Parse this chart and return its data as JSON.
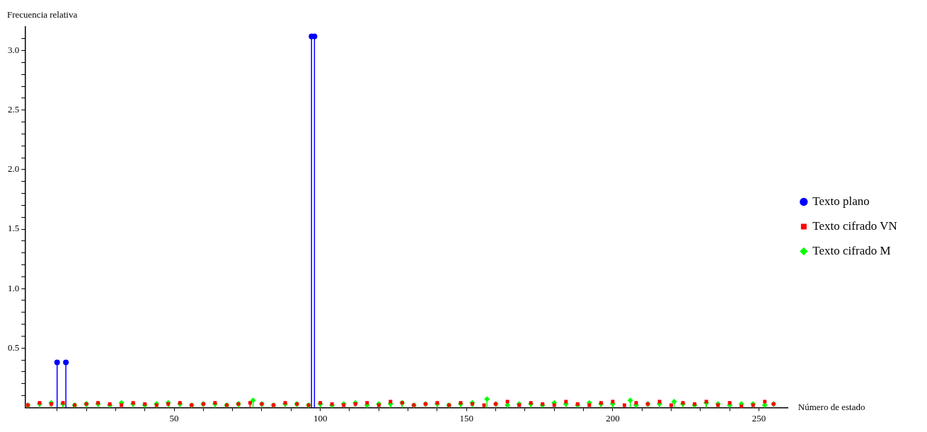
{
  "chart_data": {
    "type": "lollipop",
    "xlabel": "Número de estado",
    "ylabel": "Frecuencia relativa",
    "legend": "right",
    "grid": false,
    "xlim": [
      -1,
      260
    ],
    "ylim": [
      0,
      3.2
    ],
    "xticks": [
      {
        "value": 10,
        "label": null
      },
      {
        "value": 20,
        "label": null
      },
      {
        "value": 30,
        "label": null
      },
      {
        "value": 40,
        "label": null
      },
      50,
      {
        "value": 60,
        "label": null
      },
      {
        "value": 70,
        "label": null
      },
      {
        "value": 80,
        "label": null
      },
      {
        "value": 90,
        "label": null
      },
      100,
      {
        "value": 110,
        "label": null
      },
      {
        "value": 120,
        "label": null
      },
      {
        "value": 130,
        "label": null
      },
      {
        "value": 140,
        "label": null
      },
      150,
      {
        "value": 160,
        "label": null
      },
      {
        "value": 170,
        "label": null
      },
      {
        "value": 180,
        "label": null
      },
      {
        "value": 190,
        "label": null
      },
      200,
      {
        "value": 210,
        "label": null
      },
      {
        "value": 220,
        "label": null
      },
      {
        "value": 230,
        "label": null
      },
      {
        "value": 240,
        "label": null
      },
      250
    ],
    "yticks": [
      {
        "value": 0.1,
        "label": null
      },
      {
        "value": 0.2,
        "label": null
      },
      {
        "value": 0.3,
        "label": null
      },
      {
        "value": 0.4,
        "label": null
      },
      {
        "value": 0.5,
        "label": "0.5"
      },
      {
        "value": 0.6,
        "label": null
      },
      {
        "value": 0.7,
        "label": null
      },
      {
        "value": 0.8,
        "label": null
      },
      {
        "value": 0.9,
        "label": null
      },
      {
        "value": 1.0,
        "label": "1.0"
      },
      {
        "value": 1.1,
        "label": null
      },
      {
        "value": 1.2,
        "label": null
      },
      {
        "value": 1.3,
        "label": null
      },
      {
        "value": 1.4,
        "label": null
      },
      {
        "value": 1.5,
        "label": "1.5"
      },
      {
        "value": 1.6,
        "label": null
      },
      {
        "value": 1.7,
        "label": null
      },
      {
        "value": 1.8,
        "label": null
      },
      {
        "value": 1.9,
        "label": null
      },
      {
        "value": 2.0,
        "label": "2.0"
      },
      {
        "value": 2.1,
        "label": null
      },
      {
        "value": 2.2,
        "label": null
      },
      {
        "value": 2.3,
        "label": null
      },
      {
        "value": 2.4,
        "label": null
      },
      {
        "value": 2.5,
        "label": "2.5"
      },
      {
        "value": 2.6,
        "label": null
      },
      {
        "value": 2.7,
        "label": null
      },
      {
        "value": 2.8,
        "label": null
      },
      {
        "value": 2.9,
        "label": null
      },
      {
        "value": 3.0,
        "label": "3.0"
      },
      {
        "value": 3.1,
        "label": null
      }
    ],
    "series": [
      {
        "name": "Texto plano",
        "color": "#0000ff",
        "marker": "circle",
        "x": [
          10,
          13,
          97,
          98
        ],
        "values": [
          0.38,
          0.38,
          3.12,
          3.12
        ]
      },
      {
        "name": "Texto cifrado VN",
        "color": "#ff0000",
        "marker": "square",
        "x": [
          0,
          4,
          8,
          12,
          16,
          20,
          24,
          28,
          32,
          36,
          40,
          44,
          48,
          52,
          56,
          60,
          64,
          68,
          72,
          76,
          80,
          84,
          88,
          92,
          96,
          100,
          104,
          108,
          112,
          116,
          120,
          124,
          128,
          132,
          136,
          140,
          144,
          148,
          152,
          156,
          160,
          164,
          168,
          172,
          176,
          180,
          184,
          188,
          192,
          196,
          200,
          204,
          208,
          212,
          216,
          220,
          224,
          228,
          232,
          236,
          240,
          244,
          248,
          252,
          255
        ],
        "values": [
          0.02,
          0.04,
          0.03,
          0.04,
          0.02,
          0.03,
          0.04,
          0.03,
          0.02,
          0.04,
          0.03,
          0.02,
          0.03,
          0.04,
          0.02,
          0.03,
          0.04,
          0.02,
          0.03,
          0.04,
          0.03,
          0.02,
          0.04,
          0.03,
          0.02,
          0.04,
          0.03,
          0.02,
          0.03,
          0.04,
          0.02,
          0.05,
          0.04,
          0.02,
          0.03,
          0.04,
          0.02,
          0.04,
          0.03,
          0.02,
          0.03,
          0.05,
          0.02,
          0.04,
          0.03,
          0.02,
          0.05,
          0.03,
          0.02,
          0.04,
          0.05,
          0.02,
          0.04,
          0.03,
          0.05,
          0.02,
          0.04,
          0.03,
          0.05,
          0.02,
          0.04,
          0.01,
          0.02,
          0.05,
          0.03
        ]
      },
      {
        "name": "Texto cifrado M",
        "color": "#00ff00",
        "marker": "diamond",
        "x": [
          0,
          4,
          8,
          12,
          16,
          20,
          24,
          28,
          32,
          36,
          40,
          44,
          48,
          52,
          56,
          60,
          64,
          68,
          72,
          77,
          80,
          84,
          88,
          92,
          96,
          100,
          104,
          108,
          112,
          116,
          120,
          124,
          128,
          132,
          136,
          140,
          144,
          148,
          152,
          157,
          160,
          164,
          168,
          172,
          176,
          180,
          184,
          188,
          192,
          196,
          200,
          206,
          208,
          212,
          216,
          221,
          224,
          228,
          232,
          236,
          240,
          244,
          248,
          252,
          255
        ],
        "values": [
          0.02,
          0.03,
          0.04,
          0.03,
          0.02,
          0.03,
          0.03,
          0.02,
          0.04,
          0.03,
          0.02,
          0.03,
          0.04,
          0.03,
          0.02,
          0.03,
          0.03,
          0.02,
          0.03,
          0.06,
          0.03,
          0.02,
          0.03,
          0.03,
          0.02,
          0.03,
          0.02,
          0.03,
          0.04,
          0.02,
          0.03,
          0.03,
          0.04,
          0.02,
          0.03,
          0.03,
          0.02,
          0.03,
          0.04,
          0.07,
          0.03,
          0.02,
          0.03,
          0.03,
          0.02,
          0.04,
          0.03,
          0.02,
          0.04,
          0.03,
          0.03,
          0.06,
          0.02,
          0.03,
          0.03,
          0.05,
          0.03,
          0.02,
          0.04,
          0.03,
          0.02,
          0.03,
          0.03,
          0.02,
          0.03
        ]
      }
    ]
  }
}
